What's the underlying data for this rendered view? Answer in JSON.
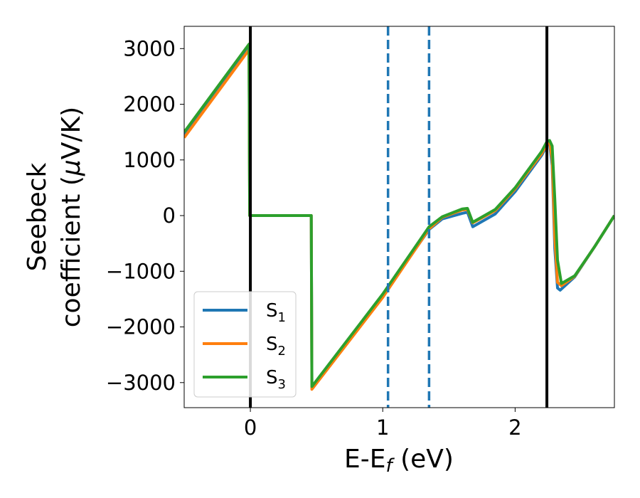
{
  "chart_data": {
    "type": "line",
    "xlabel": "E-E_f (eV)",
    "xlabel_parts": {
      "main": "E-E",
      "subscript": "f",
      "suffix": " (eV)"
    },
    "ylabel_lines": [
      "Seebeck",
      "coefficient  (μV/K)"
    ],
    "ylabel_parts": {
      "line1": "Seebeck",
      "line2_prefix": "coefficient  (",
      "mu": "μ",
      "line2_suffix": "V/K)"
    },
    "xlim": [
      -0.5,
      2.75
    ],
    "ylim": [
      -3450,
      3400
    ],
    "xticks": [
      0,
      1,
      2
    ],
    "xtick_labels": [
      "0",
      "1",
      "2"
    ],
    "yticks": [
      3000,
      2000,
      1000,
      0,
      -1000,
      -2000,
      -3000
    ],
    "ytick_labels": [
      "3000",
      "2000",
      "1000",
      "0",
      "−1000",
      "−2000",
      "−3000"
    ],
    "grid": false,
    "legend_position": "lower-left",
    "vlines": [
      {
        "x": 0.0,
        "style": "solid",
        "color": "#000000"
      },
      {
        "x": 2.24,
        "style": "solid",
        "color": "#000000"
      },
      {
        "x": 1.04,
        "style": "dashed",
        "color": "#1f77b4"
      },
      {
        "x": 1.35,
        "style": "dashed",
        "color": "#1f77b4"
      }
    ],
    "series": [
      {
        "name": "S1",
        "label_main": "S",
        "label_sub": "1",
        "color": "#1f77b4",
        "points": [
          [
            -0.5,
            1440
          ],
          [
            -0.01,
            3010
          ],
          [
            -0.005,
            0
          ],
          [
            0.46,
            0
          ],
          [
            0.465,
            -3090
          ],
          [
            1.0,
            -1440
          ],
          [
            1.35,
            -250
          ],
          [
            1.45,
            -60
          ],
          [
            1.6,
            40
          ],
          [
            1.64,
            60
          ],
          [
            1.68,
            -200
          ],
          [
            1.85,
            30
          ],
          [
            2.0,
            430
          ],
          [
            2.2,
            1080
          ],
          [
            2.24,
            1260
          ],
          [
            2.26,
            1300
          ],
          [
            2.28,
            900
          ],
          [
            2.3,
            -600
          ],
          [
            2.32,
            -1300
          ],
          [
            2.34,
            -1340
          ],
          [
            2.45,
            -1100
          ],
          [
            2.6,
            -560
          ],
          [
            2.75,
            0
          ]
        ]
      },
      {
        "name": "S2",
        "label_main": "S",
        "label_sub": "2",
        "color": "#ff7f0e",
        "points": [
          [
            -0.5,
            1400
          ],
          [
            -0.01,
            2980
          ],
          [
            -0.005,
            0
          ],
          [
            0.46,
            0
          ],
          [
            0.465,
            -3120
          ],
          [
            1.0,
            -1470
          ],
          [
            1.35,
            -240
          ],
          [
            1.45,
            -30
          ],
          [
            1.6,
            100
          ],
          [
            1.64,
            110
          ],
          [
            1.68,
            -130
          ],
          [
            1.85,
            90
          ],
          [
            2.0,
            480
          ],
          [
            2.2,
            1110
          ],
          [
            2.24,
            1280
          ],
          [
            2.26,
            1330
          ],
          [
            2.28,
            1020
          ],
          [
            2.3,
            -400
          ],
          [
            2.32,
            -1200
          ],
          [
            2.35,
            -1260
          ],
          [
            2.45,
            -1090
          ],
          [
            2.6,
            -560
          ],
          [
            2.75,
            0
          ]
        ]
      },
      {
        "name": "S3",
        "label_main": "S",
        "label_sub": "3",
        "color": "#2ca02c",
        "points": [
          [
            -0.5,
            1500
          ],
          [
            -0.01,
            3080
          ],
          [
            -0.005,
            0
          ],
          [
            0.46,
            0
          ],
          [
            0.465,
            -3070
          ],
          [
            1.0,
            -1410
          ],
          [
            1.35,
            -200
          ],
          [
            1.45,
            -20
          ],
          [
            1.6,
            120
          ],
          [
            1.64,
            130
          ],
          [
            1.68,
            -120
          ],
          [
            1.85,
            110
          ],
          [
            2.0,
            500
          ],
          [
            2.2,
            1150
          ],
          [
            2.24,
            1330
          ],
          [
            2.26,
            1350
          ],
          [
            2.28,
            1250
          ],
          [
            2.3,
            300
          ],
          [
            2.32,
            -800
          ],
          [
            2.35,
            -1220
          ],
          [
            2.45,
            -1080
          ],
          [
            2.6,
            -560
          ],
          [
            2.75,
            0
          ]
        ]
      }
    ]
  }
}
